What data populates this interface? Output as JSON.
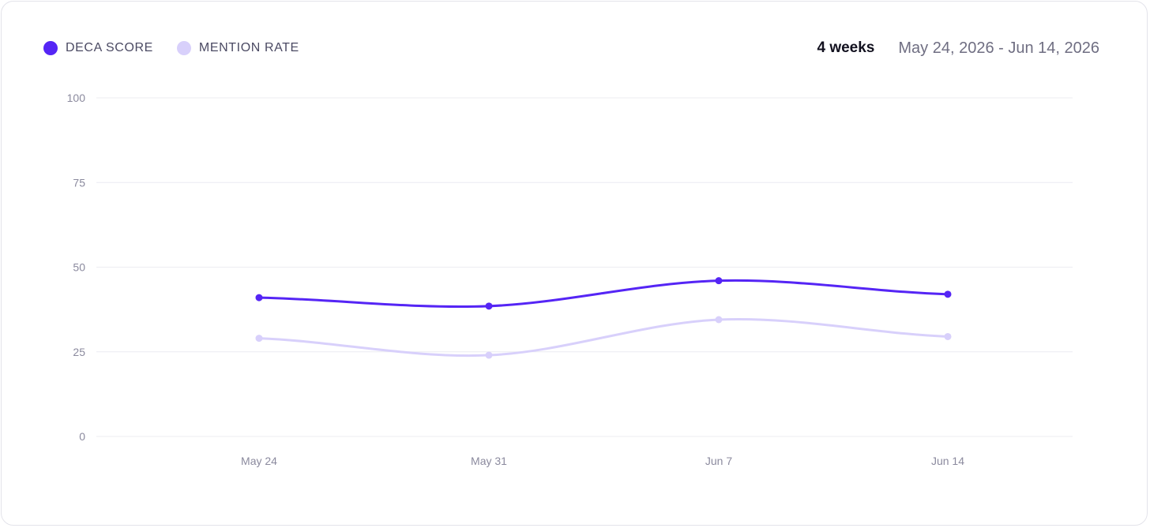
{
  "header": {
    "period": "4 weeks",
    "date_range": "May 24, 2026 - Jun 14, 2026"
  },
  "legend": [
    {
      "label": "DECA SCORE",
      "color": "#5525f5"
    },
    {
      "label": "MENTION RATE",
      "color": "#d8d0fb"
    }
  ],
  "chart_data": {
    "type": "line",
    "title": "",
    "xlabel": "",
    "ylabel": "",
    "categories": [
      "May 24",
      "May 31",
      "Jun 7",
      "Jun 14"
    ],
    "ylim": [
      0,
      100
    ],
    "yticks": [
      0,
      25,
      50,
      75,
      100
    ],
    "grid": "horizontal",
    "legend_position": "top-left",
    "series": [
      {
        "name": "DECA SCORE",
        "color": "#5525f5",
        "values": [
          41,
          38.5,
          46,
          42
        ]
      },
      {
        "name": "MENTION RATE",
        "color": "#d8d0fb",
        "values": [
          29,
          24,
          34.5,
          29.5
        ]
      }
    ]
  }
}
